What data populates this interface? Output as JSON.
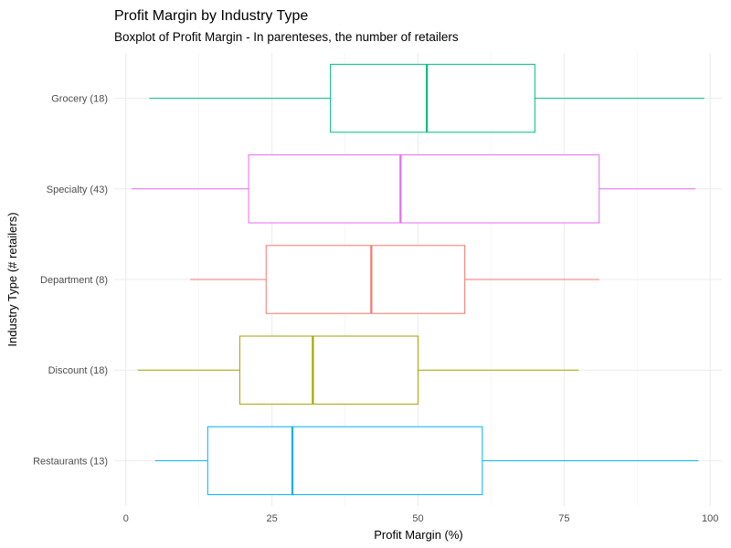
{
  "chart_data": {
    "type": "boxplot",
    "orientation": "horizontal",
    "title": "Profit Margin by Industry Type",
    "subtitle": "Boxplot of Profit Margin - In parenteses, the number of retailers",
    "xlabel": "Profit Margin (%)",
    "ylabel": "Industry Type (# retailers)",
    "xlim": [
      -2,
      102
    ],
    "x_ticks": [
      0,
      25,
      50,
      75,
      100
    ],
    "x_tick_labels": [
      "0",
      "25",
      "50",
      "75",
      "100"
    ],
    "series": [
      {
        "category": "Grocery (18)",
        "min": 4,
        "q1": 35,
        "median": 51.5,
        "q3": 70,
        "max": 99,
        "color": "#00BF7D"
      },
      {
        "category": "Specialty (43)",
        "min": 1,
        "q1": 21,
        "median": 47,
        "q3": 81,
        "max": 97.5,
        "color": "#E76BF3"
      },
      {
        "category": "Department (8)",
        "min": 11,
        "q1": 24,
        "median": 42,
        "q3": 58,
        "max": 81,
        "color": "#F8766D"
      },
      {
        "category": "Discount (18)",
        "min": 2,
        "q1": 19.5,
        "median": 32,
        "q3": 50,
        "max": 77.5,
        "color": "#A3A500"
      },
      {
        "category": "Restaurants (13)",
        "min": 5,
        "q1": 14,
        "median": 28.5,
        "q3": 61,
        "max": 98,
        "color": "#00B0F6"
      }
    ]
  }
}
